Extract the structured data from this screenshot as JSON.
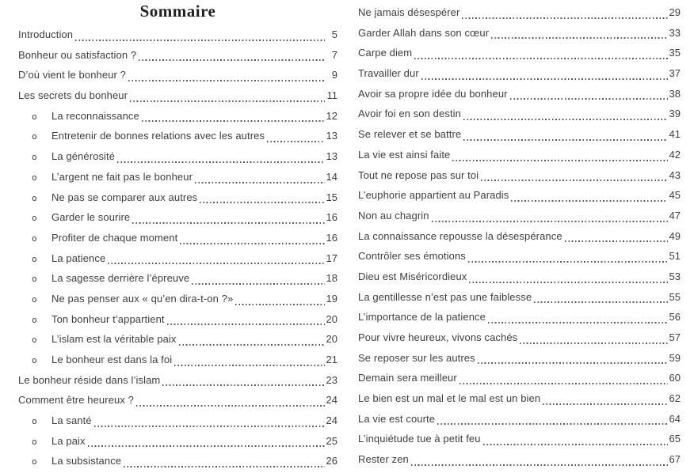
{
  "page_title": "Sommaire",
  "bullet_glyph": "o",
  "toc": {
    "left": [
      {
        "label": "Introduction",
        "page": "5",
        "level": 0
      },
      {
        "label": "Bonheur ou satisfaction ?",
        "page": "7",
        "level": 0
      },
      {
        "label": "D’où vient le bonheur ?",
        "page": "9",
        "level": 0
      },
      {
        "label": "Les secrets du bonheur",
        "page": "11",
        "level": 0
      },
      {
        "label": "La reconnaissance",
        "page": "12",
        "level": 1
      },
      {
        "label": "Entretenir de bonnes relations avec les autres",
        "page": "13",
        "level": 1
      },
      {
        "label": "La générosité",
        "page": "13",
        "level": 1
      },
      {
        "label": "L’argent ne fait pas le bonheur",
        "page": "14",
        "level": 1
      },
      {
        "label": "Ne pas se comparer aux autres",
        "page": "15",
        "level": 1
      },
      {
        "label": "Garder le sourire",
        "page": "16",
        "level": 1
      },
      {
        "label": "Profiter de chaque moment",
        "page": "16",
        "level": 1
      },
      {
        "label": "La patience",
        "page": "17",
        "level": 1
      },
      {
        "label": "La sagesse derrière l’épreuve",
        "page": "18",
        "level": 1
      },
      {
        "label": "Ne pas penser aux « qu’en dira-t-on ?»",
        "page": "19",
        "level": 1
      },
      {
        "label": "Ton bonheur t’appartient",
        "page": "20",
        "level": 1
      },
      {
        "label": "L’islam est la véritable paix",
        "page": "20",
        "level": 1
      },
      {
        "label": "Le bonheur est dans la foi",
        "page": "21",
        "level": 1
      },
      {
        "label": "Le bonheur réside dans l’islam",
        "page": "23",
        "level": 0
      },
      {
        "label": "Comment être heureux ?",
        "page": "24",
        "level": 0
      },
      {
        "label": "La santé",
        "page": "24",
        "level": 1
      },
      {
        "label": "La paix",
        "page": "25",
        "level": 1
      },
      {
        "label": "La subsistance",
        "page": "26",
        "level": 1
      }
    ],
    "right": [
      {
        "label": "Ne jamais désespérer",
        "page": "29",
        "level": 0
      },
      {
        "label": "Garder Allah dans son cœur",
        "page": "33",
        "level": 0
      },
      {
        "label": "Carpe diem",
        "page": "35",
        "level": 0
      },
      {
        "label": "Travailler dur",
        "page": "37",
        "level": 0
      },
      {
        "label": "Avoir sa propre idée du bonheur",
        "page": "38",
        "level": 0
      },
      {
        "label": "Avoir foi en son destin",
        "page": "39",
        "level": 0
      },
      {
        "label": "Se relever et se battre",
        "page": "41",
        "level": 0
      },
      {
        "label": "La vie est ainsi faite",
        "page": "42",
        "level": 0
      },
      {
        "label": "Tout ne repose pas sur toi",
        "page": "43",
        "level": 0
      },
      {
        "label": "L’euphorie appartient au Paradis",
        "page": "45",
        "level": 0
      },
      {
        "label": "Non au chagrin",
        "page": "47",
        "level": 0
      },
      {
        "label": "La connaissance repousse la désespérance",
        "page": "49",
        "level": 0
      },
      {
        "label": "Contrôler ses émotions",
        "page": "51",
        "level": 0
      },
      {
        "label": "Dieu est Miséricordieux",
        "page": "53",
        "level": 0
      },
      {
        "label": "La gentillesse n’est pas une faiblesse",
        "page": "55",
        "level": 0
      },
      {
        "label": "L’importance de la patience",
        "page": "56",
        "level": 0
      },
      {
        "label": "Pour vivre heureux, vivons cachés",
        "page": "57",
        "level": 0
      },
      {
        "label": "Se reposer sur les autres",
        "page": "59",
        "level": 0
      },
      {
        "label": "Demain sera meilleur",
        "page": "60",
        "level": 0
      },
      {
        "label": "Le bien est un mal et le mal est un bien",
        "page": "62",
        "level": 0
      },
      {
        "label": "La vie est courte",
        "page": "64",
        "level": 0
      },
      {
        "label": "L’inquiétude tue à petit feu",
        "page": "65",
        "level": 0
      },
      {
        "label": "Rester zen",
        "page": "67",
        "level": 0
      }
    ]
  },
  "colors": {
    "text": "#3f3f3f",
    "title": "#1e1e1e",
    "dots": "#5a5a5a",
    "background": "#ffffff"
  }
}
